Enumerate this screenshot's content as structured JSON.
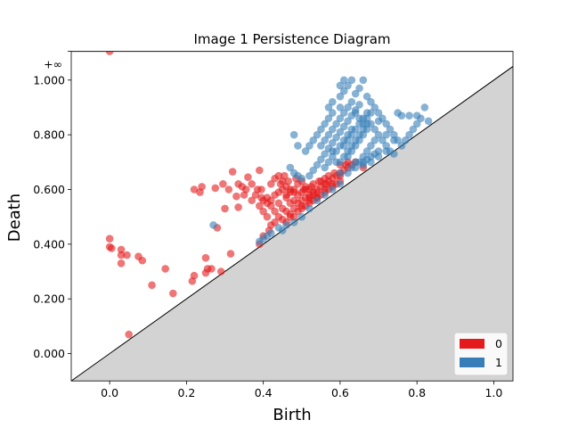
{
  "chart_data": {
    "type": "scatter",
    "title": "Image 1 Persistence Diagram",
    "xlabel": "Birth",
    "ylabel": "Death",
    "xlim": [
      -0.1,
      1.05
    ],
    "ylim": [
      -0.1,
      1.105
    ],
    "x_ticks": [
      0.0,
      0.2,
      0.4,
      0.6,
      0.8,
      1.0
    ],
    "x_tick_labels": [
      "0.0",
      "0.2",
      "0.4",
      "0.6",
      "0.8",
      "1.0"
    ],
    "y_ticks": [
      0.0,
      0.2,
      0.4,
      0.6,
      0.8,
      1.0
    ],
    "y_tick_labels": [
      "0.000",
      "0.200",
      "0.400",
      "0.600",
      "0.800",
      "1.000"
    ],
    "infinity_label": "+∞",
    "infinity_value": 1.105,
    "diagonal": true,
    "legend_position": "bottom-right",
    "series": [
      {
        "name": "0",
        "color": "#e41a1c",
        "points": [
          [
            0.0,
            1.105
          ],
          [
            0.0,
            0.42
          ],
          [
            0.0,
            0.39
          ],
          [
            0.005,
            0.385
          ],
          [
            0.03,
            0.38
          ],
          [
            0.03,
            0.36
          ],
          [
            0.045,
            0.36
          ],
          [
            0.075,
            0.355
          ],
          [
            0.085,
            0.34
          ],
          [
            0.03,
            0.33
          ],
          [
            0.11,
            0.25
          ],
          [
            0.145,
            0.31
          ],
          [
            0.165,
            0.22
          ],
          [
            0.215,
            0.265
          ],
          [
            0.22,
            0.285
          ],
          [
            0.25,
            0.295
          ],
          [
            0.255,
            0.31
          ],
          [
            0.265,
            0.31
          ],
          [
            0.29,
            0.3
          ],
          [
            0.25,
            0.35
          ],
          [
            0.315,
            0.365
          ],
          [
            0.28,
            0.46
          ],
          [
            0.22,
            0.6
          ],
          [
            0.24,
            0.61
          ],
          [
            0.235,
            0.59
          ],
          [
            0.275,
            0.605
          ],
          [
            0.295,
            0.62
          ],
          [
            0.31,
            0.6
          ],
          [
            0.32,
            0.665
          ],
          [
            0.335,
            0.62
          ],
          [
            0.36,
            0.645
          ],
          [
            0.39,
            0.67
          ],
          [
            0.3,
            0.53
          ],
          [
            0.335,
            0.535
          ],
          [
            0.35,
            0.58
          ],
          [
            0.33,
            0.575
          ],
          [
            0.38,
            0.58
          ],
          [
            0.37,
            0.56
          ],
          [
            0.39,
            0.54
          ],
          [
            0.395,
            0.6
          ],
          [
            0.4,
            0.52
          ],
          [
            0.41,
            0.5
          ],
          [
            0.415,
            0.45
          ],
          [
            0.42,
            0.47
          ],
          [
            0.43,
            0.48
          ],
          [
            0.39,
            0.4
          ],
          [
            0.4,
            0.43
          ],
          [
            0.42,
            0.62
          ],
          [
            0.43,
            0.64
          ],
          [
            0.44,
            0.65
          ],
          [
            0.45,
            0.63
          ],
          [
            0.46,
            0.61
          ],
          [
            0.47,
            0.6
          ],
          [
            0.48,
            0.59
          ],
          [
            0.49,
            0.62
          ],
          [
            0.5,
            0.63
          ],
          [
            0.51,
            0.61
          ],
          [
            0.52,
            0.6
          ],
          [
            0.53,
            0.62
          ],
          [
            0.54,
            0.6
          ],
          [
            0.55,
            0.61
          ],
          [
            0.56,
            0.62
          ],
          [
            0.57,
            0.63
          ],
          [
            0.58,
            0.64
          ],
          [
            0.59,
            0.65
          ],
          [
            0.6,
            0.66
          ],
          [
            0.61,
            0.67
          ],
          [
            0.62,
            0.68
          ],
          [
            0.63,
            0.69
          ],
          [
            0.64,
            0.7
          ],
          [
            0.46,
            0.57
          ],
          [
            0.47,
            0.55
          ],
          [
            0.48,
            0.56
          ],
          [
            0.49,
            0.55
          ],
          [
            0.5,
            0.56
          ],
          [
            0.51,
            0.57
          ],
          [
            0.52,
            0.56
          ],
          [
            0.53,
            0.58
          ],
          [
            0.54,
            0.57
          ],
          [
            0.55,
            0.58
          ],
          [
            0.56,
            0.59
          ],
          [
            0.57,
            0.6
          ],
          [
            0.58,
            0.61
          ],
          [
            0.59,
            0.62
          ],
          [
            0.6,
            0.63
          ],
          [
            0.44,
            0.55
          ],
          [
            0.45,
            0.53
          ],
          [
            0.46,
            0.52
          ],
          [
            0.47,
            0.51
          ],
          [
            0.48,
            0.5
          ],
          [
            0.49,
            0.52
          ],
          [
            0.5,
            0.53
          ],
          [
            0.51,
            0.54
          ],
          [
            0.52,
            0.55
          ],
          [
            0.53,
            0.56
          ],
          [
            0.54,
            0.57
          ],
          [
            0.43,
            0.58
          ],
          [
            0.42,
            0.56
          ],
          [
            0.41,
            0.57
          ],
          [
            0.44,
            0.59
          ],
          [
            0.45,
            0.6
          ],
          [
            0.46,
            0.58
          ],
          [
            0.47,
            0.59
          ],
          [
            0.48,
            0.6
          ],
          [
            0.49,
            0.58
          ],
          [
            0.5,
            0.59
          ],
          [
            0.51,
            0.6
          ],
          [
            0.52,
            0.58
          ],
          [
            0.53,
            0.59
          ],
          [
            0.55,
            0.63
          ],
          [
            0.56,
            0.64
          ],
          [
            0.57,
            0.65
          ],
          [
            0.6,
            0.69
          ],
          [
            0.62,
            0.7
          ],
          [
            0.66,
            0.68
          ],
          [
            0.45,
            0.49
          ],
          [
            0.46,
            0.48
          ],
          [
            0.47,
            0.5
          ],
          [
            0.48,
            0.53
          ],
          [
            0.5,
            0.54
          ],
          [
            0.52,
            0.57
          ],
          [
            0.54,
            0.59
          ],
          [
            0.56,
            0.6
          ],
          [
            0.58,
            0.62
          ],
          [
            0.6,
            0.65
          ],
          [
            0.44,
            0.5
          ],
          [
            0.43,
            0.52
          ],
          [
            0.42,
            0.54
          ],
          [
            0.41,
            0.55
          ],
          [
            0.4,
            0.56
          ],
          [
            0.395,
            0.57
          ],
          [
            0.385,
            0.6
          ],
          [
            0.37,
            0.62
          ],
          [
            0.355,
            0.6
          ],
          [
            0.345,
            0.61
          ],
          [
            0.445,
            0.62
          ],
          [
            0.455,
            0.65
          ],
          [
            0.465,
            0.63
          ],
          [
            0.485,
            0.64
          ],
          [
            0.505,
            0.6
          ],
          [
            0.525,
            0.61
          ],
          [
            0.545,
            0.63
          ],
          [
            0.565,
            0.62
          ],
          [
            0.585,
            0.66
          ],
          [
            0.615,
            0.69
          ],
          [
            0.05,
            0.07
          ]
        ]
      },
      {
        "name": "1",
        "color": "#377eb8",
        "points": [
          [
            0.27,
            0.47
          ],
          [
            0.39,
            0.41
          ],
          [
            0.4,
            0.42
          ],
          [
            0.41,
            0.43
          ],
          [
            0.42,
            0.44
          ],
          [
            0.44,
            0.46
          ],
          [
            0.45,
            0.45
          ],
          [
            0.46,
            0.47
          ],
          [
            0.48,
            0.48
          ],
          [
            0.5,
            0.5
          ],
          [
            0.52,
            0.53
          ],
          [
            0.54,
            0.56
          ],
          [
            0.56,
            0.58
          ],
          [
            0.58,
            0.6
          ],
          [
            0.6,
            0.62
          ],
          [
            0.47,
            0.68
          ],
          [
            0.48,
            0.66
          ],
          [
            0.49,
            0.65
          ],
          [
            0.5,
            0.64
          ],
          [
            0.52,
            0.65
          ],
          [
            0.53,
            0.67
          ],
          [
            0.54,
            0.69
          ],
          [
            0.55,
            0.71
          ],
          [
            0.56,
            0.73
          ],
          [
            0.57,
            0.75
          ],
          [
            0.58,
            0.77
          ],
          [
            0.59,
            0.79
          ],
          [
            0.6,
            0.81
          ],
          [
            0.61,
            0.83
          ],
          [
            0.62,
            0.85
          ],
          [
            0.63,
            0.87
          ],
          [
            0.64,
            0.89
          ],
          [
            0.65,
            0.91
          ],
          [
            0.64,
            0.95
          ],
          [
            0.65,
            0.97
          ],
          [
            0.66,
            1.0
          ],
          [
            0.63,
            1.0
          ],
          [
            0.61,
            0.96
          ],
          [
            0.6,
            0.94
          ],
          [
            0.62,
            0.98
          ],
          [
            0.67,
            0.94
          ],
          [
            0.68,
            0.92
          ],
          [
            0.69,
            0.9
          ],
          [
            0.7,
            0.88
          ],
          [
            0.71,
            0.86
          ],
          [
            0.72,
            0.84
          ],
          [
            0.73,
            0.82
          ],
          [
            0.74,
            0.8
          ],
          [
            0.75,
            0.78
          ],
          [
            0.76,
            0.76
          ],
          [
            0.77,
            0.78
          ],
          [
            0.78,
            0.8
          ],
          [
            0.79,
            0.82
          ],
          [
            0.8,
            0.84
          ],
          [
            0.81,
            0.86
          ],
          [
            0.82,
            0.9
          ],
          [
            0.83,
            0.85
          ],
          [
            0.75,
            0.88
          ],
          [
            0.76,
            0.87
          ],
          [
            0.78,
            0.87
          ],
          [
            0.8,
            0.87
          ],
          [
            0.68,
            0.84
          ],
          [
            0.69,
            0.82
          ],
          [
            0.7,
            0.8
          ],
          [
            0.71,
            0.78
          ],
          [
            0.72,
            0.76
          ],
          [
            0.73,
            0.74
          ],
          [
            0.74,
            0.73
          ],
          [
            0.66,
            0.72
          ],
          [
            0.67,
            0.74
          ],
          [
            0.68,
            0.76
          ],
          [
            0.69,
            0.78
          ],
          [
            0.62,
            0.72
          ],
          [
            0.63,
            0.74
          ],
          [
            0.64,
            0.76
          ],
          [
            0.65,
            0.78
          ],
          [
            0.66,
            0.8
          ],
          [
            0.67,
            0.82
          ],
          [
            0.58,
            0.72
          ],
          [
            0.59,
            0.74
          ],
          [
            0.6,
            0.76
          ],
          [
            0.61,
            0.78
          ],
          [
            0.62,
            0.8
          ],
          [
            0.63,
            0.82
          ],
          [
            0.55,
            0.76
          ],
          [
            0.56,
            0.78
          ],
          [
            0.57,
            0.8
          ],
          [
            0.58,
            0.82
          ],
          [
            0.59,
            0.84
          ],
          [
            0.6,
            0.86
          ],
          [
            0.48,
            0.8
          ],
          [
            0.49,
            0.76
          ],
          [
            0.57,
            0.9
          ],
          [
            0.58,
            0.92
          ],
          [
            0.6,
            0.9
          ],
          [
            0.61,
            0.88
          ],
          [
            0.62,
            0.9
          ],
          [
            0.63,
            0.92
          ],
          [
            0.64,
            0.88
          ],
          [
            0.65,
            0.86
          ],
          [
            0.66,
            0.84
          ],
          [
            0.67,
            0.86
          ],
          [
            0.68,
            0.88
          ],
          [
            0.7,
            0.85
          ],
          [
            0.72,
            0.8
          ],
          [
            0.74,
            0.78
          ],
          [
            0.63,
            0.68
          ],
          [
            0.64,
            0.7
          ],
          [
            0.65,
            0.7
          ],
          [
            0.66,
            0.69
          ],
          [
            0.67,
            0.71
          ],
          [
            0.68,
            0.72
          ],
          [
            0.69,
            0.73
          ],
          [
            0.7,
            0.74
          ],
          [
            0.6,
            0.7
          ],
          [
            0.61,
            0.72
          ],
          [
            0.62,
            0.74
          ],
          [
            0.63,
            0.76
          ],
          [
            0.64,
            0.78
          ],
          [
            0.65,
            0.8
          ],
          [
            0.66,
            0.82
          ],
          [
            0.67,
            0.84
          ],
          [
            0.56,
            0.68
          ],
          [
            0.57,
            0.7
          ],
          [
            0.59,
            0.7
          ],
          [
            0.58,
            0.74
          ],
          [
            0.61,
            0.76
          ],
          [
            0.62,
            0.78
          ],
          [
            0.63,
            0.8
          ],
          [
            0.64,
            0.82
          ],
          [
            0.65,
            0.84
          ],
          [
            0.66,
            0.86
          ],
          [
            0.67,
            0.88
          ],
          [
            0.6,
            0.66
          ],
          [
            0.62,
            0.66
          ],
          [
            0.64,
            0.68
          ],
          [
            0.66,
            0.7
          ],
          [
            0.68,
            0.7
          ],
          [
            0.7,
            0.72
          ],
          [
            0.72,
            0.74
          ],
          [
            0.55,
            0.82
          ],
          [
            0.56,
            0.84
          ],
          [
            0.57,
            0.86
          ],
          [
            0.58,
            0.88
          ],
          [
            0.54,
            0.8
          ],
          [
            0.53,
            0.78
          ],
          [
            0.52,
            0.76
          ],
          [
            0.51,
            0.74
          ],
          [
            0.6,
            0.98
          ],
          [
            0.61,
            1.0
          ]
        ]
      }
    ]
  }
}
